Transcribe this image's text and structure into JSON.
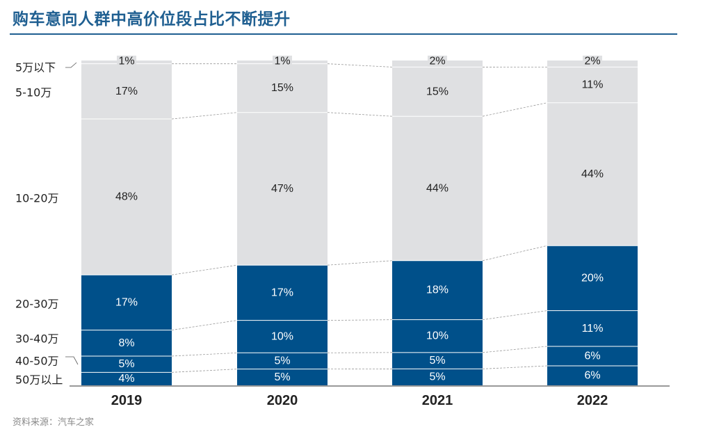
{
  "title": "购车意向人群中高价位段占比不断提升",
  "source": "资料来源：汽车之家",
  "colors": {
    "light": "#dfe0e2",
    "dark": "#00508a",
    "accent": "#1f5f91"
  },
  "chart_data": {
    "type": "bar",
    "stacked": true,
    "normalized": true,
    "categories": [
      "2019",
      "2020",
      "2021",
      "2022"
    ],
    "series": [
      {
        "name": "50万以上",
        "values": [
          4,
          5,
          5,
          6
        ],
        "color": "#00508a"
      },
      {
        "name": "40-50万",
        "values": [
          5,
          5,
          5,
          6
        ],
        "color": "#00508a"
      },
      {
        "name": "30-40万",
        "values": [
          8,
          10,
          10,
          11
        ],
        "color": "#00508a"
      },
      {
        "name": "20-30万",
        "values": [
          17,
          17,
          18,
          20
        ],
        "color": "#00508a"
      },
      {
        "name": "10-20万",
        "values": [
          48,
          47,
          44,
          44
        ],
        "color": "#dfe0e2"
      },
      {
        "name": "5-10万",
        "values": [
          17,
          15,
          15,
          11
        ],
        "color": "#dfe0e2"
      },
      {
        "name": "5万以下",
        "values": [
          1,
          1,
          2,
          2
        ],
        "color": "#dfe0e2"
      }
    ],
    "value_suffix": "%",
    "legend": "left"
  }
}
